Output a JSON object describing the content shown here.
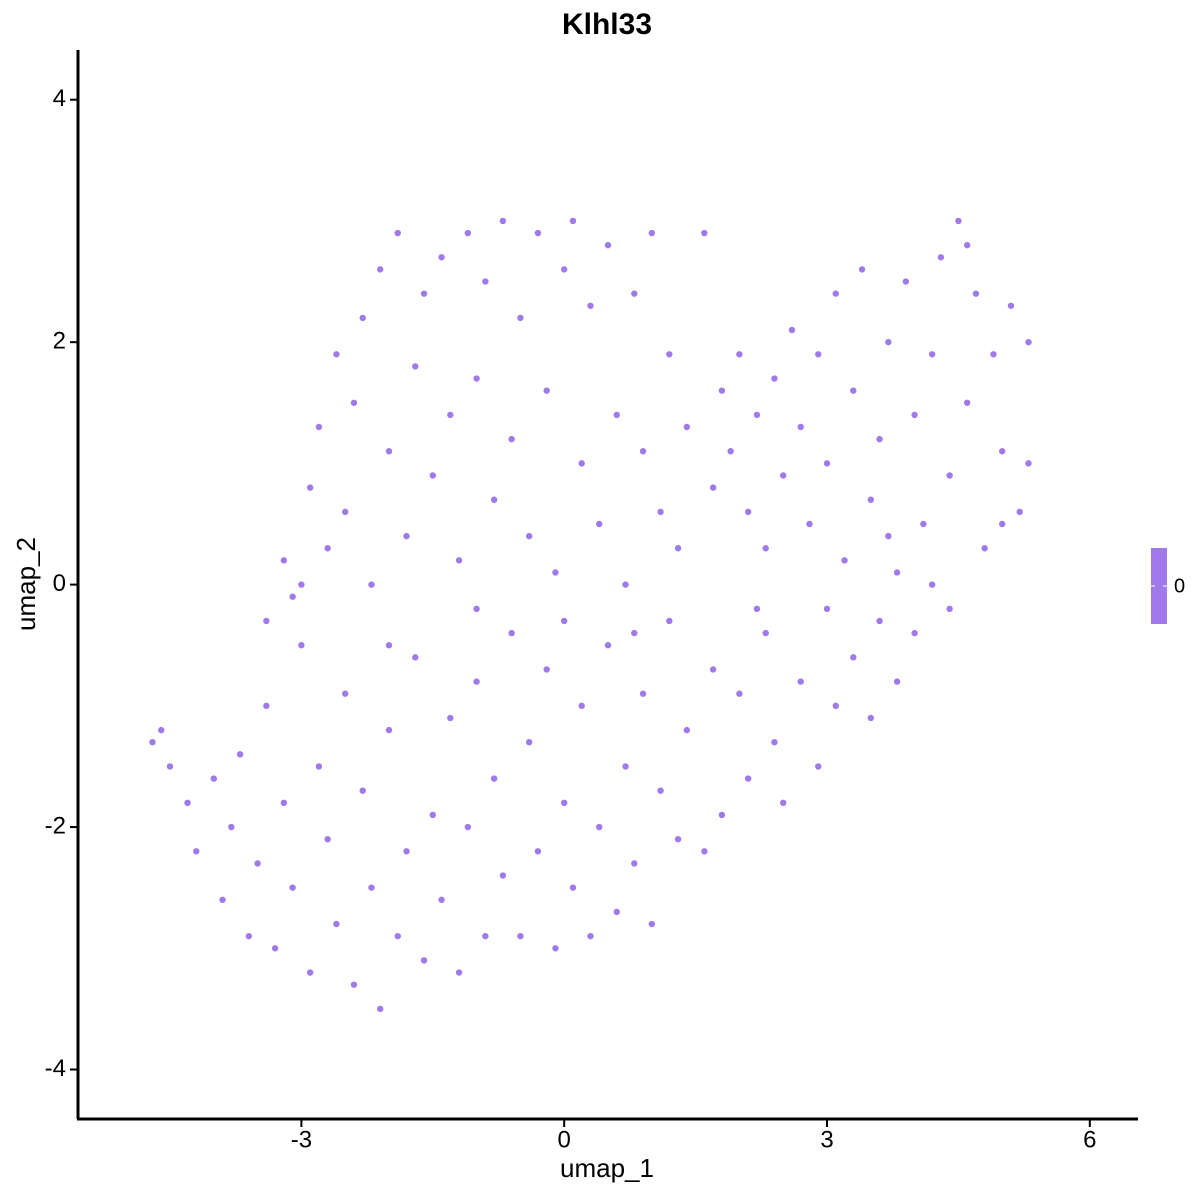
{
  "chart_data": {
    "type": "scatter",
    "title": "Klhl33",
    "x_label": "umap_1",
    "y_label": "umap_2",
    "color": "#a07aea",
    "xlim": [
      -5.55,
      6.55
    ],
    "ylim": [
      -4.4,
      4.41
    ],
    "xticks": [
      -3,
      0,
      3,
      6
    ],
    "yticks": [
      -4,
      -2,
      0,
      2,
      4
    ],
    "grid": false,
    "colorbar": {
      "ticks": [
        0
      ],
      "color": "#a07aea"
    },
    "x": [
      -4.7,
      -4.6,
      -4.5,
      -4.3,
      -4.2,
      -4.0,
      -3.9,
      -3.8,
      -3.7,
      -3.6,
      -3.5,
      -3.4,
      -3.3,
      -3.2,
      -3.1,
      -3.0,
      -2.9,
      -2.8,
      -2.7,
      -2.6,
      -2.5,
      -2.4,
      -2.3,
      -2.2,
      -2.1,
      -2.0,
      -1.9,
      -1.8,
      -1.7,
      -1.6,
      -1.5,
      -1.4,
      -1.3,
      -1.2,
      -1.1,
      -1.0,
      -0.9,
      -0.8,
      -0.7,
      -0.6,
      -0.5,
      -0.4,
      -0.3,
      -0.2,
      -0.1,
      0.0,
      0.1,
      0.2,
      0.3,
      0.4,
      0.5,
      0.6,
      0.7,
      0.8,
      0.9,
      1.0,
      1.1,
      1.2,
      1.3,
      1.4,
      1.6,
      1.7,
      1.8,
      2.0,
      2.1,
      2.3,
      2.4,
      2.5,
      2.7,
      2.9,
      3.1,
      3.3,
      3.5,
      3.6,
      3.8,
      -3.2,
      -3.1,
      -2.9,
      -2.8,
      -2.7,
      -2.6,
      -2.5,
      -2.4,
      -2.3,
      -2.2,
      -2.1,
      -2.0,
      -1.9,
      -1.8,
      -1.7,
      -1.6,
      -1.5,
      -1.4,
      -1.3,
      -1.2,
      -1.1,
      -1.0,
      -0.9,
      -0.8,
      -0.7,
      -0.6,
      -0.5,
      -0.4,
      -0.3,
      -0.2,
      -0.1,
      0.0,
      0.1,
      0.2,
      0.3,
      0.4,
      0.5,
      0.6,
      0.7,
      0.8,
      0.9,
      1.0,
      1.1,
      1.2,
      1.3,
      1.4,
      1.6,
      1.7,
      1.8,
      -3.4,
      -3.0,
      -2.0,
      -1.0,
      0.0,
      0.8,
      1.9,
      2.0,
      2.1,
      2.2,
      2.3,
      2.4,
      2.5,
      2.6,
      2.7,
      2.8,
      2.9,
      3.0,
      3.1,
      3.2,
      3.3,
      3.4,
      3.5,
      3.6,
      3.7,
      3.8,
      3.9,
      4.0,
      4.1,
      4.2,
      4.3,
      4.4,
      4.5,
      4.6,
      4.7,
      4.8,
      4.9,
      5.0,
      5.1,
      5.2,
      5.3,
      5.3,
      4.4,
      4.0,
      3.7,
      5.0,
      4.6,
      2.2,
      3.0,
      4.2
    ],
    "y": [
      -1.3,
      -1.2,
      -1.5,
      -1.8,
      -2.2,
      -1.6,
      -2.6,
      -2.0,
      -1.4,
      -2.9,
      -2.3,
      -1.0,
      -3.0,
      -1.8,
      -2.5,
      -0.5,
      -3.2,
      -1.5,
      -2.1,
      -2.8,
      -0.9,
      -3.3,
      -1.7,
      -2.5,
      -3.5,
      -1.2,
      -2.9,
      -2.2,
      -0.6,
      -3.1,
      -1.9,
      -2.6,
      -1.1,
      -3.2,
      -2.0,
      -0.8,
      -2.9,
      -1.6,
      -2.4,
      -0.4,
      -2.9,
      -1.3,
      -2.2,
      -0.7,
      -3.0,
      -1.8,
      -2.5,
      -1.0,
      -2.9,
      -2.0,
      -0.5,
      -2.7,
      -1.5,
      -2.3,
      -0.9,
      -2.8,
      -1.7,
      -0.3,
      -2.1,
      -1.2,
      -2.2,
      -0.7,
      -1.9,
      -0.9,
      -1.6,
      -0.4,
      -1.3,
      -1.8,
      -0.8,
      -1.5,
      -1.0,
      -0.6,
      -1.1,
      -0.3,
      -0.8,
      0.2,
      -0.1,
      0.8,
      1.3,
      0.3,
      1.9,
      0.6,
      1.5,
      2.2,
      0.0,
      2.6,
      1.1,
      2.9,
      0.4,
      1.8,
      2.4,
      0.9,
      2.7,
      1.4,
      0.2,
      2.9,
      1.7,
      2.5,
      0.7,
      3.0,
      1.2,
      2.2,
      0.4,
      2.9,
      1.6,
      0.1,
      2.6,
      3.0,
      1.0,
      2.3,
      0.5,
      2.8,
      1.4,
      0.0,
      2.4,
      1.1,
      2.9,
      0.6,
      1.9,
      0.3,
      1.3,
      2.9,
      0.8,
      1.6,
      -0.3,
      0.0,
      -0.5,
      -0.2,
      -0.3,
      -0.4,
      1.1,
      1.9,
      0.6,
      1.4,
      0.3,
      1.7,
      0.9,
      2.1,
      1.3,
      0.5,
      1.9,
      1.0,
      2.4,
      0.2,
      1.6,
      2.6,
      0.7,
      1.2,
      2.0,
      0.1,
      2.5,
      1.4,
      0.5,
      1.9,
      2.7,
      0.9,
      3.0,
      1.5,
      2.4,
      0.3,
      1.9,
      1.1,
      2.3,
      0.6,
      2.0,
      1.0,
      -0.2,
      -0.4,
      0.4,
      0.5,
      2.8,
      -0.2,
      -0.2,
      0.0
    ]
  }
}
